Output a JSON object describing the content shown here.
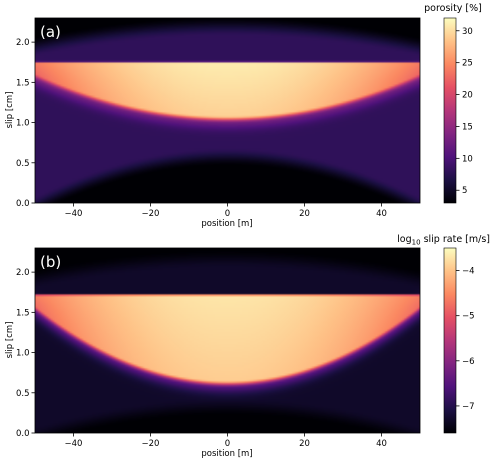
{
  "chart_data": [
    {
      "type": "heatmap",
      "panel_label": "(a)",
      "xlabel": "position [m]",
      "ylabel": "slip [cm]",
      "xlim": [
        -50,
        50
      ],
      "ylim": [
        0,
        2.3
      ],
      "xticks": [
        -40,
        -20,
        0,
        20,
        40
      ],
      "xtick_labels": [
        "−40",
        "−20",
        "0",
        "20",
        "40"
      ],
      "yticks": [
        0.0,
        0.5,
        1.0,
        1.5,
        2.0
      ],
      "ytick_labels": [
        "0.0",
        "0.5",
        "1.0",
        "1.5",
        "2.0"
      ],
      "colorbar": {
        "label": "porosity [%]",
        "range": [
          3,
          32
        ],
        "ticks": [
          5,
          10,
          15,
          20,
          25,
          30
        ],
        "tick_labels": [
          "5",
          "10",
          "15",
          "20",
          "25",
          "30"
        ],
        "colormap": "magma"
      },
      "field": {
        "top_edge_slip": 1.75,
        "bottom_slip_center": 1.05,
        "bottom_slip_edge": 1.58,
        "value_inside_max": 31,
        "value_inside_edge": 24,
        "value_background": 8,
        "value_low": 3
      }
    },
    {
      "type": "heatmap",
      "panel_label": "(b)",
      "xlabel": "position [m]",
      "ylabel": "slip [cm]",
      "xlim": [
        -50,
        50
      ],
      "ylim": [
        0,
        2.3
      ],
      "xticks": [
        -40,
        -20,
        0,
        20,
        40
      ],
      "xtick_labels": [
        "−40",
        "−20",
        "0",
        "20",
        "40"
      ],
      "yticks": [
        0.0,
        0.5,
        1.0,
        1.5,
        2.0
      ],
      "ytick_labels": [
        "0.0",
        "0.5",
        "1.0",
        "1.5",
        "2.0"
      ],
      "colorbar": {
        "label_prefix": "log",
        "label_sub": "10",
        "label_suffix": " slip rate [m/s]",
        "range": [
          -7.6,
          -3.5
        ],
        "ticks": [
          -7,
          -6,
          -5,
          -4
        ],
        "tick_labels": [
          "−7",
          "−6",
          "−5",
          "−4"
        ],
        "colormap": "magma"
      },
      "field": {
        "top_edge_slip": 1.72,
        "bottom_slip_center": 0.62,
        "bottom_slip_edge": 1.55,
        "value_inside_max": -3.7,
        "value_inside_edge": -4.6,
        "value_background": -7.3,
        "value_low": -7.6
      }
    }
  ]
}
